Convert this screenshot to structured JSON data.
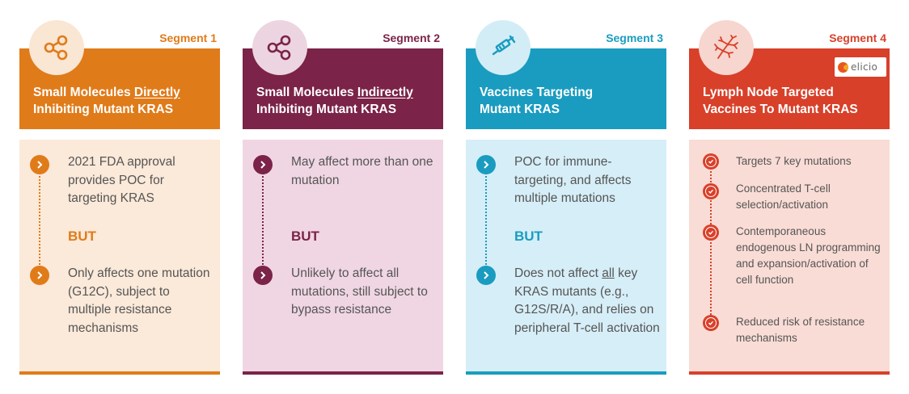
{
  "segments": [
    {
      "label": "Segment 1",
      "color": "#e07b1a",
      "icon": "molecule-icon",
      "title_line1_prefix": "Small Molecules ",
      "title_line1_underline": "Directly",
      "title_line2": "Inhibiting Mutant KRAS",
      "bullet1": "2021 FDA approval provides POC for targeting KRAS",
      "but": "BUT",
      "bullet2": "Only affects one mutation (G12C), subject to multiple resistance mechanisms"
    },
    {
      "label": "Segment 2",
      "color": "#7b2348",
      "icon": "molecule-icon",
      "title_line1_prefix": "Small Molecules ",
      "title_line1_underline": "Indirectly",
      "title_line2": "Inhibiting Mutant KRAS",
      "bullet1": "May affect more than one mutation",
      "but": "BUT",
      "bullet2": "Unlikely to affect all mutations, still subject to bypass resistance"
    },
    {
      "label": "Segment 3",
      "color": "#1a9cc0",
      "icon": "syringe-icon",
      "title_line1": "Vaccines Targeting",
      "title_line2": "Mutant KRAS",
      "bullet1": "POC for immune-targeting, and affects multiple mutations",
      "but": "BUT",
      "bullet2_prefix": "Does not affect ",
      "bullet2_underline": "all",
      "bullet2_suffix": " key KRAS mutants (e.g., G12S/R/A), and relies on peripheral T-cell activation"
    },
    {
      "label": "Segment 4",
      "color": "#d8402a",
      "icon": "lymph-node-icon",
      "title_line1": "Lymph Node Targeted",
      "title_line2": "Vaccines To Mutant KRAS",
      "logo_text": "elicio",
      "checks": [
        "Targets 7 key mutations",
        "Concentrated T-cell selection/activation",
        "Contemporaneous endogenous LN programming and expansion/activation of cell function",
        "Reduced risk of resistance mechanisms"
      ]
    }
  ]
}
